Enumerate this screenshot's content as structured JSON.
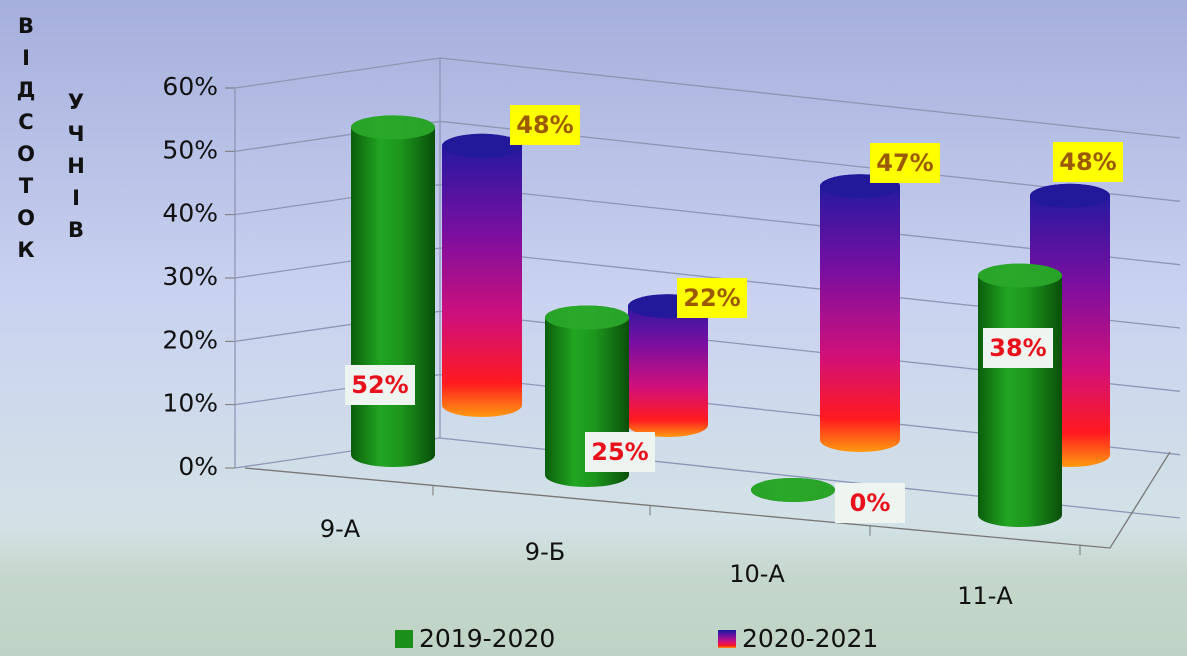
{
  "chart_data": {
    "type": "bar3d",
    "y_label_1": "ВІДСОТОК",
    "y_label_2": "УЧНІВ",
    "categories": [
      "9-А",
      "9-Б",
      "10-А",
      "11-А"
    ],
    "series": [
      {
        "name": "2019-2020",
        "color": "#1e8a1e",
        "values": [
          52,
          25,
          0,
          38
        ],
        "value_labels": [
          "52%",
          "25%",
          "0%",
          "38%"
        ]
      },
      {
        "name": "2020-2021",
        "color": "#2a1aa8",
        "values": [
          48,
          22,
          47,
          48
        ],
        "value_labels": [
          "48%",
          "22%",
          "47%",
          "48%"
        ]
      }
    ],
    "ylim": [
      0,
      60
    ],
    "yticks": [
      {
        "value": 0,
        "label": "0%"
      },
      {
        "value": 10,
        "label": "10%"
      },
      {
        "value": 20,
        "label": "20%"
      },
      {
        "value": 30,
        "label": "30%"
      },
      {
        "value": 40,
        "label": "40%"
      },
      {
        "value": 50,
        "label": "50%"
      },
      {
        "value": 60,
        "label": "60%"
      }
    ],
    "grid": true,
    "legend": "bottom"
  }
}
